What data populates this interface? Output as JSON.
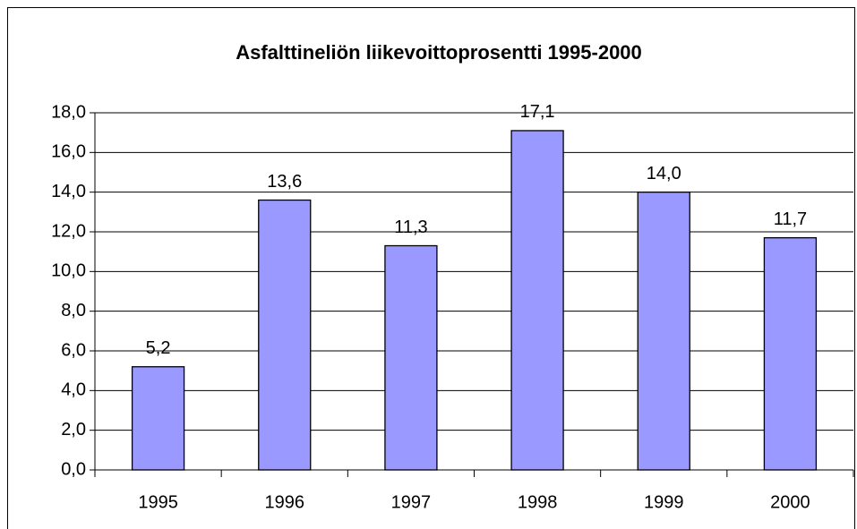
{
  "chart_data": {
    "type": "bar",
    "title": "Asfalttineliön liikevoittoprosentti 1995-2000",
    "categories": [
      "1995",
      "1996",
      "1997",
      "1998",
      "1999",
      "2000"
    ],
    "values": [
      5.2,
      13.6,
      11.3,
      17.1,
      14.0,
      11.7
    ],
    "value_labels": [
      "5,2",
      "13,6",
      "11,3",
      "17,1",
      "14,0",
      "11,7"
    ],
    "color": "#9999ff",
    "ylim": [
      0,
      18
    ],
    "yticks": [
      {
        "value": 0,
        "label": "0,0"
      },
      {
        "value": 2,
        "label": "2,0"
      },
      {
        "value": 4,
        "label": "4,0"
      },
      {
        "value": 6,
        "label": "6,0"
      },
      {
        "value": 8,
        "label": "8,0"
      },
      {
        "value": 10,
        "label": "10,0"
      },
      {
        "value": 12,
        "label": "12,0"
      },
      {
        "value": 14,
        "label": "14,0"
      },
      {
        "value": 16,
        "label": "16,0"
      },
      {
        "value": 18,
        "label": "18,0"
      }
    ],
    "grid": true
  }
}
